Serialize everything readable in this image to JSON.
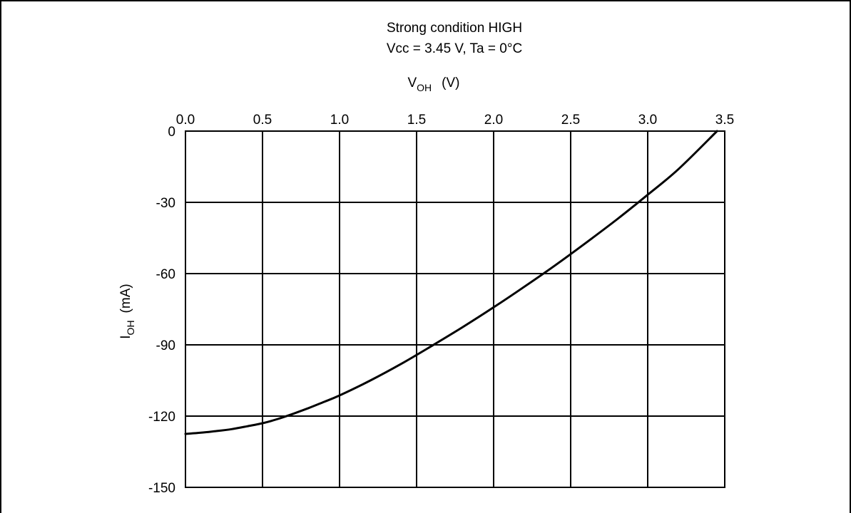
{
  "chart_data": {
    "type": "line",
    "title": "Strong condition HIGH",
    "subtitle": "Vcc = 3.45 V, Ta = 0°C",
    "xlabel": {
      "main": "V",
      "sub": "OH",
      "unit": "(V)"
    },
    "ylabel": {
      "main": "I",
      "sub": "OH",
      "unit": "(mA)"
    },
    "x_axis_position": "top",
    "xlim": [
      0,
      3.5
    ],
    "ylim": [
      -150,
      0
    ],
    "xticks": [
      "0.0",
      "0.5",
      "1.0",
      "1.5",
      "2.0",
      "2.5",
      "3.0",
      "3.5"
    ],
    "yticks": [
      "0",
      "-30",
      "-60",
      "-90",
      "-120",
      "-150"
    ],
    "grid": true,
    "series": [
      {
        "color": "#000000",
        "x": [
          0.0,
          0.1,
          0.2,
          0.3,
          0.4,
          0.5,
          0.6,
          0.7,
          0.8,
          0.9,
          1.0,
          1.2,
          1.4,
          1.6,
          1.8,
          2.0,
          2.2,
          2.4,
          2.6,
          2.8,
          3.0,
          3.2,
          3.45
        ],
        "y": [
          -127.5,
          -127.0,
          -126.3,
          -125.5,
          -124.3,
          -123.0,
          -121.2,
          -119.0,
          -116.6,
          -114.0,
          -111.3,
          -105.0,
          -98.0,
          -90.4,
          -82.5,
          -74.2,
          -65.5,
          -56.5,
          -47.0,
          -37.2,
          -26.8,
          -16.0,
          0.0
        ]
      }
    ]
  }
}
